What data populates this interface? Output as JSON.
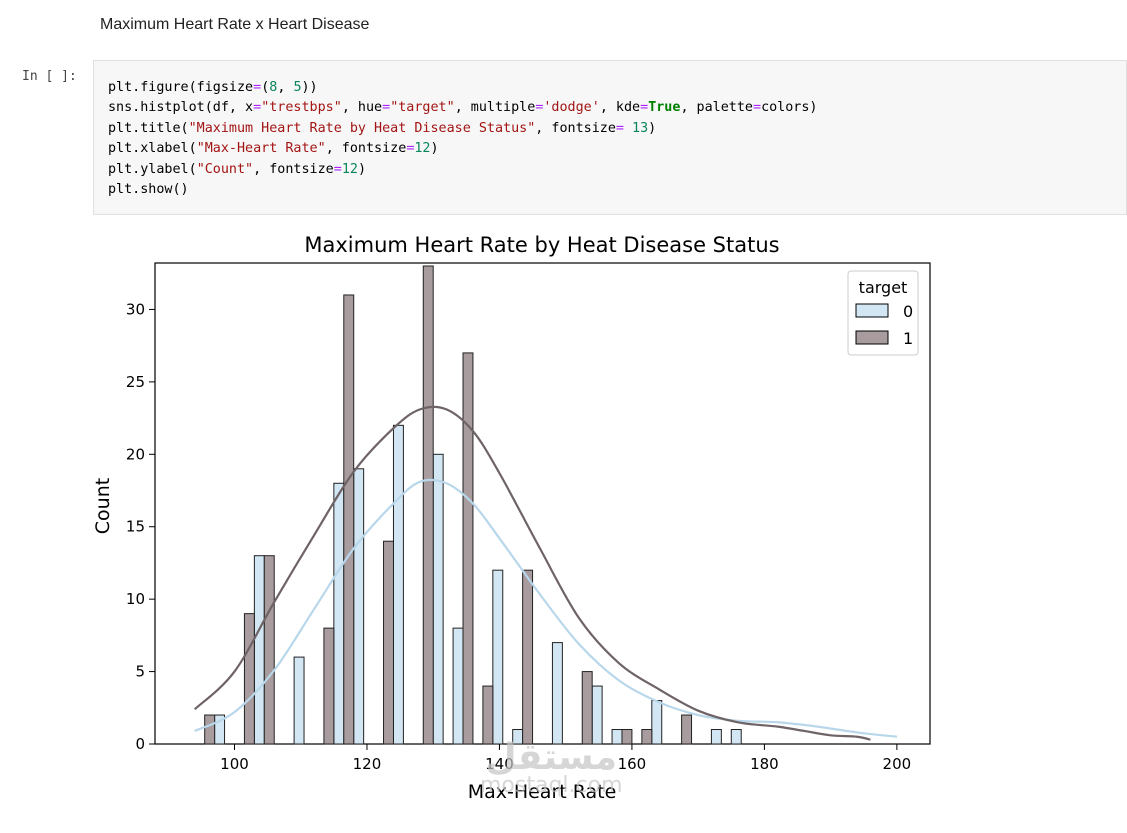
{
  "markdown": {
    "text": "Maximum Heart Rate x Heart Disease"
  },
  "cell": {
    "prompt": "In [ ]:",
    "code_lines": [
      [
        [
          "plt.figure(figsize",
          ""
        ],
        [
          "=",
          "o"
        ],
        [
          "(",
          ""
        ],
        [
          "8",
          "n"
        ],
        [
          ", ",
          ""
        ],
        [
          "5",
          "n"
        ],
        [
          "))",
          ""
        ]
      ],
      [
        [
          "sns.histplot(df, x",
          ""
        ],
        [
          "=",
          "o"
        ],
        [
          "\"trestbps\"",
          "s"
        ],
        [
          ", hue",
          ""
        ],
        [
          "=",
          "o"
        ],
        [
          "\"target\"",
          "s"
        ],
        [
          ", multiple",
          ""
        ],
        [
          "=",
          "o"
        ],
        [
          "'dodge'",
          "s"
        ],
        [
          ", kde",
          ""
        ],
        [
          "=",
          "o"
        ],
        [
          "True",
          "k"
        ],
        [
          ", palette",
          ""
        ],
        [
          "=",
          "o"
        ],
        [
          "colors)",
          ""
        ]
      ],
      [
        [
          "plt.title(",
          ""
        ],
        [
          "\"Maximum Heart Rate by Heat Disease Status\"",
          "s"
        ],
        [
          ", fontsize",
          ""
        ],
        [
          "=",
          "o"
        ],
        [
          " ",
          ""
        ],
        [
          "13",
          "n"
        ],
        [
          ")",
          ""
        ]
      ],
      [
        [
          "plt.xlabel(",
          ""
        ],
        [
          "\"Max-Heart Rate\"",
          "s"
        ],
        [
          ", fontsize",
          ""
        ],
        [
          "=",
          "o"
        ],
        [
          "12",
          "n"
        ],
        [
          ")",
          ""
        ]
      ],
      [
        [
          "plt.ylabel(",
          ""
        ],
        [
          "\"Count\"",
          "s"
        ],
        [
          ", fontsize",
          ""
        ],
        [
          "=",
          "o"
        ],
        [
          "12",
          "n"
        ],
        [
          ")",
          ""
        ]
      ],
      [
        [
          "plt.show()",
          ""
        ]
      ]
    ]
  },
  "chart_data": {
    "type": "bar",
    "title": "Maximum Heart Rate by Heat Disease Status",
    "xlabel": "Max-Heart Rate",
    "ylabel": "Count",
    "xlim": [
      88,
      205
    ],
    "ylim": [
      0,
      33
    ],
    "xticks": [
      100,
      120,
      140,
      160,
      180,
      200
    ],
    "yticks": [
      0,
      5,
      10,
      15,
      20,
      25,
      30
    ],
    "legend_title": "target",
    "legend_position": "upper right",
    "grid": false,
    "bin_edges": [
      94,
      97,
      100,
      103,
      106,
      109,
      112,
      115,
      118,
      121,
      124,
      127,
      130,
      133,
      136,
      139,
      142,
      145,
      148,
      151,
      154,
      157,
      160,
      163,
      166,
      169,
      172,
      175,
      178,
      181,
      184,
      187,
      190,
      193,
      196,
      199,
      200
    ],
    "series": [
      {
        "name": "0",
        "color": "#d3e6f3",
        "kde_color": "#b8d7ea",
        "values": [
          0,
          2,
          0,
          13,
          0,
          6,
          0,
          18,
          19,
          0,
          22,
          0,
          20,
          8,
          0,
          12,
          1,
          0,
          7,
          0,
          4,
          1,
          0,
          3,
          0,
          0,
          1,
          1,
          0,
          0,
          0,
          0,
          0,
          0,
          0,
          0
        ],
        "kde": [
          [
            94,
            0.9
          ],
          [
            100,
            2.2
          ],
          [
            106,
            5.1
          ],
          [
            112,
            9.3
          ],
          [
            118,
            13.5
          ],
          [
            124,
            16.6
          ],
          [
            128,
            18.1
          ],
          [
            132,
            18.0
          ],
          [
            136,
            16.6
          ],
          [
            140,
            14.2
          ],
          [
            146,
            10.4
          ],
          [
            152,
            6.9
          ],
          [
            158,
            4.4
          ],
          [
            164,
            2.9
          ],
          [
            170,
            2.0
          ],
          [
            176,
            1.6
          ],
          [
            182,
            1.5
          ],
          [
            188,
            1.2
          ],
          [
            194,
            0.8
          ],
          [
            200,
            0.5
          ]
        ]
      },
      {
        "name": "1",
        "color": "#a89c9f",
        "kde_color": "#6e6366",
        "values": [
          2,
          0,
          9,
          13,
          0,
          0,
          8,
          31,
          0,
          14,
          0,
          33,
          0,
          27,
          4,
          0,
          12,
          0,
          0,
          5,
          0,
          1,
          1,
          0,
          2,
          0,
          0,
          0,
          0,
          0,
          0,
          0,
          0,
          0,
          0,
          0
        ],
        "kde": [
          [
            94,
            2.4
          ],
          [
            100,
            5.0
          ],
          [
            106,
            9.8
          ],
          [
            112,
            14.4
          ],
          [
            118,
            18.8
          ],
          [
            124,
            21.8
          ],
          [
            128,
            23.1
          ],
          [
            132,
            23.1
          ],
          [
            136,
            21.6
          ],
          [
            140,
            18.7
          ],
          [
            146,
            13.6
          ],
          [
            152,
            8.7
          ],
          [
            158,
            5.6
          ],
          [
            164,
            3.8
          ],
          [
            170,
            2.3
          ],
          [
            176,
            1.5
          ],
          [
            182,
            1.2
          ],
          [
            186,
            0.9
          ],
          [
            190,
            0.6
          ],
          [
            194,
            0.5
          ],
          [
            196,
            0.3
          ]
        ]
      }
    ]
  },
  "watermark": {
    "arabic": "مستقل",
    "latin": "mostaql.com"
  }
}
